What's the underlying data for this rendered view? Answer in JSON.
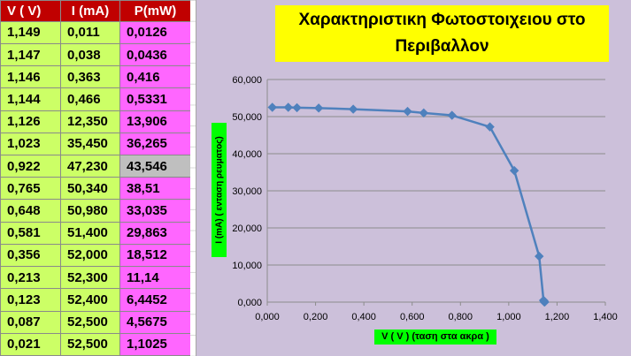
{
  "table": {
    "headers": [
      "V ( V)",
      "I (mA)",
      "P(mW)"
    ],
    "rows": [
      [
        "1,149",
        "0,011",
        "0,0126"
      ],
      [
        "1,147",
        "0,038",
        "0,0436"
      ],
      [
        "1,146",
        "0,363",
        "0,416"
      ],
      [
        "1,144",
        "0,466",
        "0,5331"
      ],
      [
        "1,126",
        "12,350",
        "13,906"
      ],
      [
        "1,023",
        "35,450",
        "36,265"
      ],
      [
        "0,922",
        "47,230",
        "43,546"
      ],
      [
        "0,765",
        "50,340",
        "38,51"
      ],
      [
        "0,648",
        "50,980",
        "33,035"
      ],
      [
        "0,581",
        "51,400",
        "29,863"
      ],
      [
        "0,356",
        "52,000",
        "18,512"
      ],
      [
        "0,213",
        "52,300",
        "11,14"
      ],
      [
        "0,123",
        "52,400",
        "6,4452"
      ],
      [
        "0,087",
        "52,500",
        "4,5675"
      ],
      [
        "0,021",
        "52,500",
        "1,1025"
      ]
    ],
    "selected_row": 6,
    "colors": {
      "header_bg": "#c00000",
      "voltage_current_bg": "#ccff66",
      "power_bg": "#ff66ff",
      "selected_bg": "#bfbfbf"
    }
  },
  "chart_data": {
    "type": "scatter",
    "title": "Χαρακτηριστικη Φωτοστοιχειου στο Περιβαλλον",
    "xlabel": "V ( V ) (ταση στα ακρα )",
    "ylabel": "I (mA)  ( ενταση ρευματος)",
    "xlim": [
      0,
      1.4
    ],
    "ylim": [
      0,
      60
    ],
    "x_ticks": [
      "0,000",
      "0,200",
      "0,400",
      "0,600",
      "0,800",
      "1,000",
      "1,200",
      "1,400"
    ],
    "y_ticks": [
      "0,000",
      "10,000",
      "20,000",
      "30,000",
      "40,000",
      "50,000",
      "60,000"
    ],
    "grid": "horizontal",
    "series": [
      {
        "x": [
          1.149,
          1.147,
          1.146,
          1.144,
          1.126,
          1.023,
          0.922,
          0.765,
          0.648,
          0.581,
          0.356,
          0.213,
          0.123,
          0.087,
          0.021
        ],
        "y": [
          0.011,
          0.038,
          0.363,
          0.466,
          12.35,
          35.45,
          47.23,
          50.34,
          50.98,
          51.4,
          52.0,
          52.3,
          52.4,
          52.5,
          52.5
        ],
        "color": "#4f81bd"
      }
    ],
    "colors": {
      "chart_bg": "#ccc0da",
      "title_bg": "#ffff00",
      "label_bg": "#00ff00"
    }
  }
}
